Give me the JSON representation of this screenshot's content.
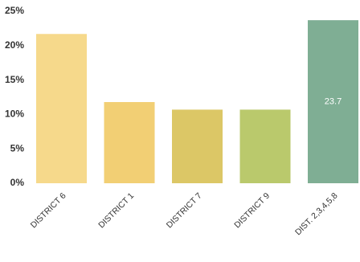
{
  "chart_data": {
    "type": "bar",
    "categories": [
      "DISTRICT 6",
      "DISTRICT 1",
      "DISTRICT 7",
      "DISTRICT 9",
      "DIST. 2,3,4,5,8"
    ],
    "values": [
      21.7,
      11.8,
      10.7,
      10.7,
      23.7
    ],
    "value_labels": [
      null,
      null,
      null,
      null,
      "23.7"
    ],
    "colors": [
      "#f6d98b",
      "#f2cf74",
      "#dcc766",
      "#bac96c",
      "#7fae94"
    ],
    "ylim": [
      0,
      25
    ],
    "yticks": [
      {
        "value": 0,
        "label": "0%"
      },
      {
        "value": 5,
        "label": "5%"
      },
      {
        "value": 10,
        "label": "10%"
      },
      {
        "value": 15,
        "label": "15%"
      },
      {
        "value": 20,
        "label": "20%"
      },
      {
        "value": 25,
        "label": "25%"
      }
    ]
  }
}
